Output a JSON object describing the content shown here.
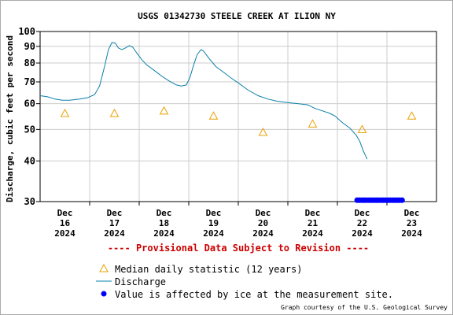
{
  "chart_data": {
    "type": "line",
    "title": "USGS 01342730 STEELE CREEK AT ILION NY",
    "ylabel": "Discharge, cubic feet per second",
    "xlabel": "",
    "y_scale": "log",
    "ylim": [
      30,
      100
    ],
    "y_ticks": [
      30,
      40,
      50,
      60,
      70,
      80,
      90,
      100
    ],
    "xlim": [
      0,
      8
    ],
    "grid": true,
    "x_ticks": [
      {
        "x": 0.5,
        "line1": "Dec",
        "line2": "16",
        "line3": "2024"
      },
      {
        "x": 1.5,
        "line1": "Dec",
        "line2": "17",
        "line3": "2024"
      },
      {
        "x": 2.5,
        "line1": "Dec",
        "line2": "18",
        "line3": "2024"
      },
      {
        "x": 3.5,
        "line1": "Dec",
        "line2": "19",
        "line3": "2024"
      },
      {
        "x": 4.5,
        "line1": "Dec",
        "line2": "20",
        "line3": "2024"
      },
      {
        "x": 5.5,
        "line1": "Dec",
        "line2": "21",
        "line3": "2024"
      },
      {
        "x": 6.5,
        "line1": "Dec",
        "line2": "22",
        "line3": "2024"
      },
      {
        "x": 7.5,
        "line1": "Dec",
        "line2": "23",
        "line3": "2024"
      }
    ],
    "series": [
      {
        "name": "Discharge",
        "color": "#0a7fa8",
        "points": [
          [
            0.0,
            63.5
          ],
          [
            0.15,
            63
          ],
          [
            0.3,
            62
          ],
          [
            0.45,
            61.5
          ],
          [
            0.6,
            61.5
          ],
          [
            0.8,
            62
          ],
          [
            0.95,
            62.5
          ],
          [
            1.1,
            64
          ],
          [
            1.2,
            68
          ],
          [
            1.3,
            78
          ],
          [
            1.38,
            88
          ],
          [
            1.45,
            92.5
          ],
          [
            1.52,
            92
          ],
          [
            1.58,
            89
          ],
          [
            1.65,
            88
          ],
          [
            1.72,
            89
          ],
          [
            1.8,
            90.5
          ],
          [
            1.87,
            89.5
          ],
          [
            1.95,
            86
          ],
          [
            2.05,
            82
          ],
          [
            2.15,
            79
          ],
          [
            2.3,
            76
          ],
          [
            2.45,
            73
          ],
          [
            2.6,
            70.5
          ],
          [
            2.75,
            68.5
          ],
          [
            2.85,
            68
          ],
          [
            2.95,
            68.5
          ],
          [
            3.02,
            72
          ],
          [
            3.1,
            79
          ],
          [
            3.17,
            85
          ],
          [
            3.25,
            88
          ],
          [
            3.3,
            87
          ],
          [
            3.4,
            83
          ],
          [
            3.55,
            78
          ],
          [
            3.7,
            75
          ],
          [
            3.85,
            72
          ],
          [
            4.0,
            69.5
          ],
          [
            4.2,
            66
          ],
          [
            4.4,
            63.5
          ],
          [
            4.6,
            62
          ],
          [
            4.8,
            61
          ],
          [
            5.0,
            60.5
          ],
          [
            5.2,
            60
          ],
          [
            5.4,
            59.5
          ],
          [
            5.55,
            58
          ],
          [
            5.7,
            57
          ],
          [
            5.85,
            56
          ],
          [
            5.95,
            55
          ],
          [
            6.1,
            52.5
          ],
          [
            6.25,
            50.5
          ],
          [
            6.38,
            48
          ],
          [
            6.45,
            46
          ],
          [
            6.52,
            43
          ],
          [
            6.57,
            41.5
          ],
          [
            6.6,
            40.5
          ]
        ]
      },
      {
        "name": "Median daily statistic (12 years)",
        "marker": "triangle",
        "color": "#e8a000",
        "points": [
          [
            0.5,
            56
          ],
          [
            1.5,
            56
          ],
          [
            2.5,
            57
          ],
          [
            3.5,
            55
          ],
          [
            4.5,
            49
          ],
          [
            5.5,
            52
          ],
          [
            6.5,
            50
          ],
          [
            7.5,
            55
          ]
        ]
      },
      {
        "name": "Value is affected by ice at the measurement site.",
        "marker": "dot",
        "color": "#0000ff",
        "x_range": [
          6.4,
          7.35
        ],
        "y": 30.3
      }
    ]
  },
  "notice": "---- Provisional Data Subject to Revision ----",
  "legend": {
    "median_label": "Median daily statistic (12 years)",
    "discharge_label": "Discharge",
    "ice_label": "Value is affected by ice at the measurement site."
  },
  "credit": "Graph courtesy of the U.S. Geological Survey",
  "colors": {
    "discharge": "#0a7fa8",
    "median": "#e8a000",
    "ice": "#0000ff",
    "notice": "#cc0000",
    "grid": "#cccccc"
  }
}
